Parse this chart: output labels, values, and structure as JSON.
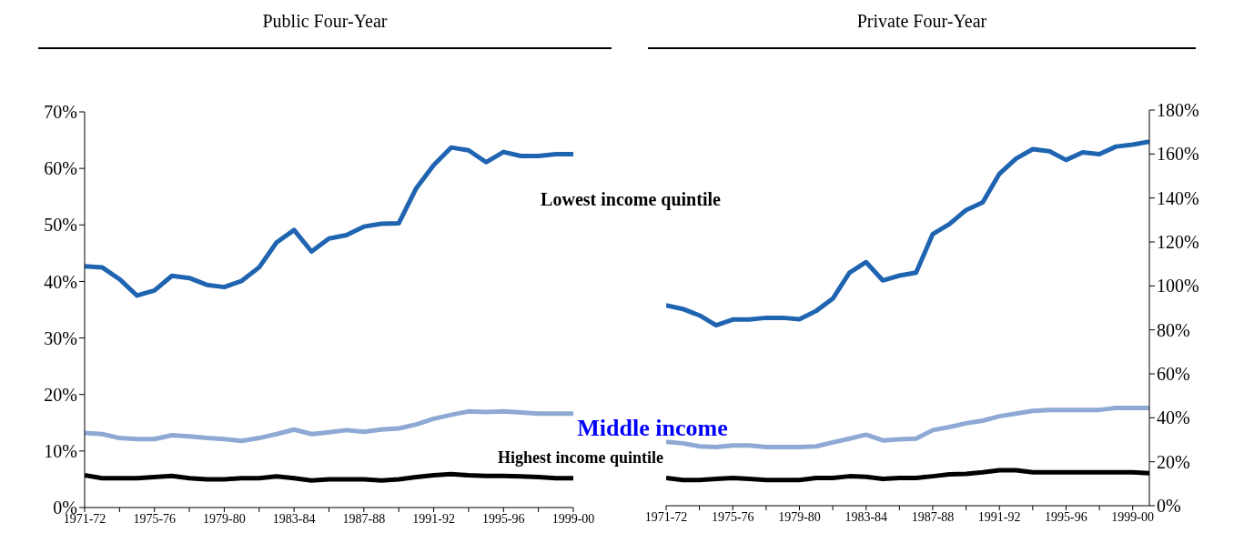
{
  "chart_data": [
    {
      "type": "line",
      "title": "Public Four-Year",
      "categories": [
        "1971-72",
        null,
        null,
        null,
        "1975-76",
        null,
        null,
        null,
        "1979-80",
        null,
        null,
        null,
        "1983-84",
        null,
        null,
        null,
        "1987-88",
        null,
        null,
        null,
        "1991-92",
        null,
        null,
        null,
        "1995-96",
        null,
        null,
        null,
        "1999-00"
      ],
      "series": [
        {
          "color": "#1f64b0",
          "values": [
            42.7,
            42.5,
            40.4,
            37.5,
            38.4,
            41.0,
            40.6,
            39.4,
            39.0,
            40.1,
            42.5,
            46.9,
            49.1,
            45.3,
            47.6,
            48.2,
            49.7,
            50.2,
            50.3,
            56.5,
            60.6,
            63.7,
            63.2,
            61.1,
            62.9,
            62.2,
            62.2,
            62.5,
            62.5
          ]
        },
        {
          "color": "#8ea9d3",
          "values": [
            13.2,
            13.0,
            12.3,
            12.1,
            12.1,
            12.8,
            12.6,
            12.3,
            12.1,
            11.8,
            12.3,
            13.0,
            13.8,
            13.0,
            13.3,
            13.7,
            13.4,
            13.8,
            14.0,
            14.7,
            15.7,
            16.4,
            17.0,
            16.9,
            17.0,
            16.8,
            16.6,
            16.6,
            16.6
          ]
        },
        {
          "color": "#000000",
          "values": [
            5.7,
            5.2,
            5.2,
            5.2,
            5.4,
            5.6,
            5.2,
            5.0,
            5.0,
            5.2,
            5.2,
            5.5,
            5.2,
            4.8,
            5.0,
            5.0,
            5.0,
            4.8,
            5.0,
            5.4,
            5.7,
            5.9,
            5.7,
            5.6,
            5.6,
            5.5,
            5.4,
            5.2,
            5.2
          ]
        }
      ],
      "ylim": [
        0,
        70
      ],
      "yticks": [
        {
          "value": 0,
          "label": "0%"
        },
        {
          "value": 10,
          "label": "10%"
        },
        {
          "value": 20,
          "label": "20%"
        },
        {
          "value": 30,
          "label": "30%"
        },
        {
          "value": 40,
          "label": "40%"
        },
        {
          "value": 50,
          "label": "50%"
        },
        {
          "value": 60,
          "label": "60%"
        },
        {
          "value": 70,
          "label": "70%"
        }
      ],
      "grid": false,
      "legend": false,
      "marker": "none",
      "line_style": "solid",
      "annotations": [
        "Lowest income quintile",
        "Middle income",
        "Highest income quintile"
      ]
    },
    {
      "type": "line",
      "title": "Private Four-Year",
      "categories": [
        "1971-72",
        null,
        null,
        null,
        "1975-76",
        null,
        null,
        null,
        "1979-80",
        null,
        null,
        null,
        "1983-84",
        null,
        null,
        null,
        "1987-88",
        null,
        null,
        null,
        "1991-92",
        null,
        null,
        null,
        "1995-96",
        null,
        null,
        null,
        "1999-00",
        null
      ],
      "series": [
        {
          "color": "#1f64b0",
          "values": [
            91.2,
            89.5,
            86.6,
            82.1,
            84.7,
            84.7,
            85.5,
            85.5,
            84.8,
            88.6,
            94.2,
            106,
            110.8,
            102.5,
            104.7,
            106,
            123.6,
            128.1,
            134.5,
            138,
            151,
            157.9,
            162.2,
            161.3,
            157.3,
            160.8,
            159.9,
            163.4,
            164.3,
            165.6
          ]
        },
        {
          "color": "#8ea9d3",
          "values": [
            29.1,
            28.4,
            27.0,
            26.7,
            27.4,
            27.4,
            26.7,
            26.7,
            26.7,
            27.0,
            28.8,
            30.5,
            32.3,
            29.7,
            30.2,
            30.5,
            34.4,
            35.8,
            37.5,
            38.7,
            40.7,
            41.9,
            43.1,
            43.6,
            43.6,
            43.6,
            43.6,
            44.5,
            44.5,
            44.5
          ]
        },
        {
          "color": "#000000",
          "values": [
            12.6,
            11.7,
            11.7,
            12.2,
            12.6,
            12.2,
            11.7,
            11.7,
            11.7,
            12.6,
            12.6,
            13.4,
            13.1,
            12.2,
            12.6,
            12.6,
            13.4,
            14.3,
            14.5,
            15.2,
            16.1,
            16.1,
            15.2,
            15.2,
            15.2,
            15.2,
            15.2,
            15.2,
            15.2,
            14.8
          ]
        }
      ],
      "ylim": [
        0,
        180
      ],
      "yticks": [
        {
          "value": 0,
          "label": "0%"
        },
        {
          "value": 20,
          "label": "20%"
        },
        {
          "value": 40,
          "label": "40%"
        },
        {
          "value": 60,
          "label": "60%"
        },
        {
          "value": 80,
          "label": "80%"
        },
        {
          "value": 100,
          "label": "100%"
        },
        {
          "value": 120,
          "label": "120%"
        },
        {
          "value": 140,
          "label": "140%"
        },
        {
          "value": 160,
          "label": "160%"
        },
        {
          "value": 180,
          "label": "180%"
        }
      ],
      "grid": false,
      "legend": false,
      "marker": "none",
      "line_style": "solid"
    }
  ]
}
